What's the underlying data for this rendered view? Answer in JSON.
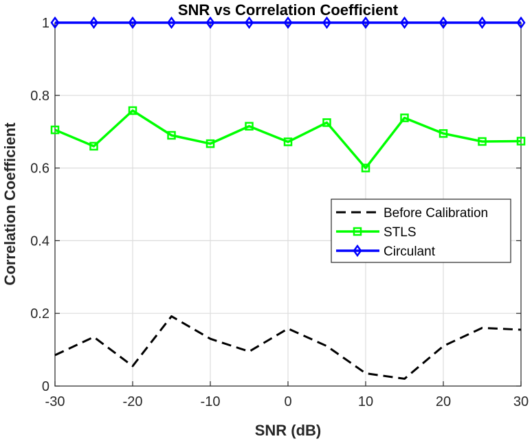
{
  "chart_data": {
    "type": "line",
    "title": "SNR vs Correlation Coefficient",
    "xlabel": "SNR (dB)",
    "ylabel": "Correlation Coefficient",
    "xlim": [
      -30,
      30
    ],
    "ylim": [
      0,
      1
    ],
    "x": [
      -30,
      -25,
      -20,
      -15,
      -10,
      -5,
      0,
      5,
      10,
      15,
      20,
      25,
      30
    ],
    "xticks": [
      "-30",
      "-20",
      "-10",
      "0",
      "10",
      "20",
      "30"
    ],
    "yticks": [
      "0",
      "0.2",
      "0.4",
      "0.6",
      "0.8",
      "1"
    ],
    "grid": true,
    "legend_position": "right",
    "series": [
      {
        "name": "Before Calibration",
        "color": "#000000",
        "style": "dashed",
        "marker": "none",
        "values": [
          0.085,
          0.135,
          0.055,
          0.192,
          0.13,
          0.095,
          0.158,
          0.11,
          0.035,
          0.02,
          0.11,
          0.16,
          0.155
        ]
      },
      {
        "name": "STLS",
        "color": "#00ff00",
        "style": "solid",
        "marker": "square",
        "values": [
          0.705,
          0.66,
          0.758,
          0.69,
          0.667,
          0.715,
          0.672,
          0.725,
          0.6,
          0.738,
          0.695,
          0.673,
          0.674
        ]
      },
      {
        "name": "Circulant",
        "color": "#0000ff",
        "style": "solid",
        "marker": "diamond",
        "values": [
          1,
          1,
          1,
          1,
          1,
          1,
          1,
          1,
          1,
          1,
          1,
          1,
          1
        ]
      }
    ]
  }
}
